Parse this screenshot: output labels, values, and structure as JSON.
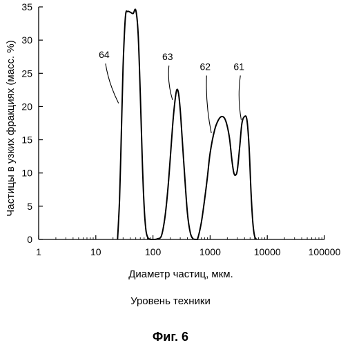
{
  "chart_data": {
    "type": "line",
    "xscale": "log",
    "xlim": [
      1,
      100000
    ],
    "ylim": [
      0,
      35
    ],
    "xticks": [
      1,
      10,
      100,
      1000,
      10000,
      100000
    ],
    "xtick_labels": [
      "1",
      "10",
      "100",
      "1000",
      "10000",
      "100000"
    ],
    "yticks": [
      0,
      5,
      10,
      15,
      20,
      25,
      30,
      35
    ],
    "ytick_labels": [
      "0",
      "5",
      "10",
      "15",
      "20",
      "25",
      "30",
      "35"
    ],
    "xlabel": "Диаметр частиц, мкм.",
    "ylabel": "Частицы в узких фракциях (масс. %)",
    "grid": false,
    "series": [
      {
        "x": [
          24,
          26,
          28,
          30,
          33,
          36,
          40,
          45,
          50,
          55,
          60,
          65,
          70,
          75,
          80,
          85,
          90,
          95,
          100,
          110,
          120,
          140,
          160,
          180,
          200,
          220,
          240,
          260,
          280,
          300,
          320,
          350,
          400,
          450,
          500,
          560,
          600,
          700,
          800,
          900,
          1000,
          1200,
          1400,
          1600,
          1800,
          2000,
          2200,
          2400,
          2600,
          2800,
          3000,
          3300,
          3600,
          4000,
          4400,
          4800,
          5200,
          5600,
          6000,
          6500
        ],
        "y": [
          0,
          6,
          16,
          26,
          33.5,
          34.3,
          34.2,
          34.0,
          34.5,
          31,
          22,
          12,
          5,
          1.5,
          0.4,
          0.1,
          0,
          0,
          0,
          0,
          0.1,
          0.5,
          3,
          7,
          12,
          17,
          20.5,
          22.5,
          22,
          19.5,
          16,
          11,
          4,
          1,
          0.1,
          0,
          0,
          2.5,
          6,
          9.5,
          13,
          16.5,
          18,
          18.5,
          18.2,
          17,
          15,
          12,
          10,
          9.7,
          10.5,
          14,
          17.5,
          18.5,
          18,
          14,
          7,
          2.5,
          0.5,
          0
        ]
      }
    ],
    "annotations": [
      {
        "text": "64",
        "x": 25,
        "y": 20.5,
        "label_x": 14,
        "label_y": 27.3
      },
      {
        "text": "63",
        "x": 220,
        "y": 21,
        "label_x": 180,
        "label_y": 27
      },
      {
        "text": "62",
        "x": 1050,
        "y": 16,
        "label_x": 820,
        "label_y": 25.5
      },
      {
        "text": "61",
        "x": 3500,
        "y": 18,
        "label_x": 3200,
        "label_y": 25.5
      }
    ]
  },
  "caption_sub": "Уровень техники",
  "caption_fig": "Фиг. 6"
}
